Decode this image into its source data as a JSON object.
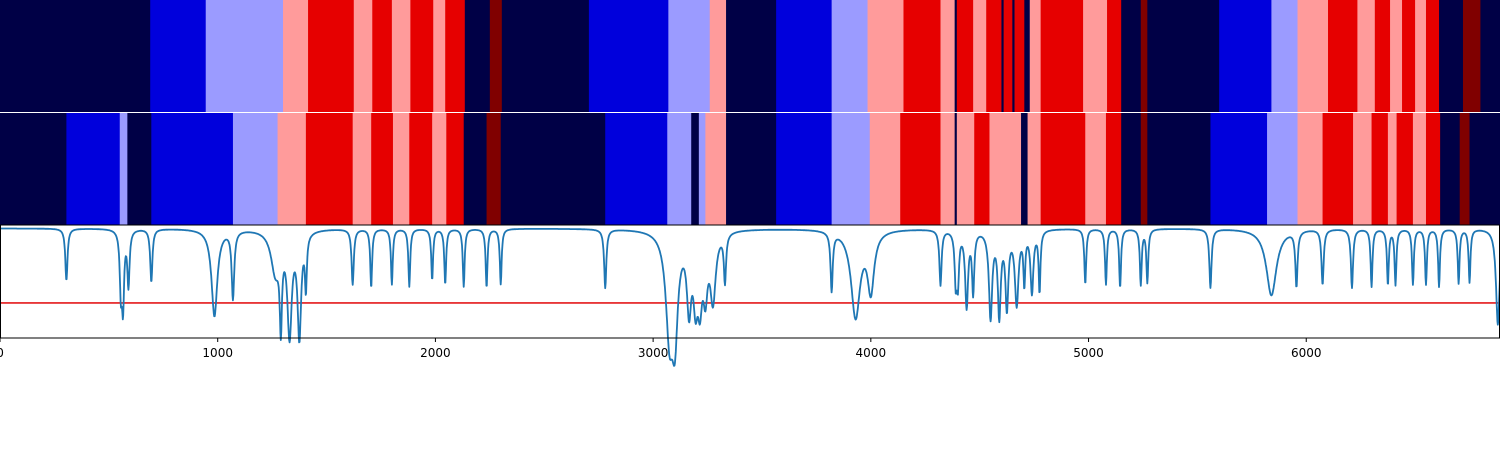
{
  "chart_data": {
    "type": "heatmap",
    "x_axis": {
      "range": [
        0,
        6890
      ],
      "ticks": [
        0,
        1000,
        2000,
        3000,
        4000,
        5000,
        6000
      ],
      "tick_labels": [
        "0",
        "1000",
        "2000",
        "3000",
        "4000",
        "5000",
        "6000"
      ]
    },
    "colormap": "seismic",
    "palette": {
      "navy": "#000046",
      "blue": "#0000dc",
      "light_blue": "#9b9bff",
      "pink": "#ff9b9b",
      "red": "#e60000",
      "dark_red": "#800000",
      "line": "#1f77b4",
      "threshold": "#e41a1c"
    },
    "tracks": [
      {
        "segments": [
          [
            0,
            690,
            "navy"
          ],
          [
            690,
            945,
            "blue"
          ],
          [
            945,
            1300,
            "light_blue"
          ],
          [
            1300,
            1415,
            "pink"
          ],
          [
            1415,
            1625,
            "red"
          ],
          [
            1625,
            1710,
            "pink"
          ],
          [
            1710,
            1800,
            "red"
          ],
          [
            1800,
            1885,
            "pink"
          ],
          [
            1885,
            1990,
            "red"
          ],
          [
            1990,
            2045,
            "pink"
          ],
          [
            2045,
            2135,
            "red"
          ],
          [
            2135,
            2250,
            "navy"
          ],
          [
            2250,
            2305,
            "dark_red"
          ],
          [
            2305,
            2705,
            "navy"
          ],
          [
            2705,
            3070,
            "blue"
          ],
          [
            3070,
            3260,
            "light_blue"
          ],
          [
            3260,
            3335,
            "pink"
          ],
          [
            3335,
            3565,
            "navy"
          ],
          [
            3565,
            3820,
            "blue"
          ],
          [
            3820,
            3985,
            "light_blue"
          ],
          [
            3985,
            4150,
            "pink"
          ],
          [
            4150,
            4320,
            "red"
          ],
          [
            4320,
            4385,
            "pink"
          ],
          [
            4385,
            4395,
            "navy"
          ],
          [
            4395,
            4470,
            "red"
          ],
          [
            4470,
            4530,
            "pink"
          ],
          [
            4530,
            4600,
            "red"
          ],
          [
            4600,
            4610,
            "navy"
          ],
          [
            4610,
            4650,
            "red"
          ],
          [
            4650,
            4660,
            "navy"
          ],
          [
            4660,
            4705,
            "red"
          ],
          [
            4705,
            4730,
            "navy"
          ],
          [
            4730,
            4780,
            "pink"
          ],
          [
            4780,
            4975,
            "red"
          ],
          [
            4975,
            5085,
            "pink"
          ],
          [
            5085,
            5150,
            "red"
          ],
          [
            5150,
            5240,
            "navy"
          ],
          [
            5240,
            5270,
            "dark_red"
          ],
          [
            5270,
            5600,
            "navy"
          ],
          [
            5600,
            5840,
            "blue"
          ],
          [
            5840,
            5960,
            "light_blue"
          ],
          [
            5960,
            6100,
            "pink"
          ],
          [
            6100,
            6235,
            "red"
          ],
          [
            6235,
            6315,
            "pink"
          ],
          [
            6315,
            6385,
            "red"
          ],
          [
            6385,
            6440,
            "pink"
          ],
          [
            6440,
            6500,
            "red"
          ],
          [
            6500,
            6550,
            "pink"
          ],
          [
            6550,
            6610,
            "red"
          ],
          [
            6610,
            6720,
            "navy"
          ],
          [
            6720,
            6800,
            "dark_red"
          ],
          [
            6800,
            6890,
            "navy"
          ]
        ]
      },
      {
        "segments": [
          [
            0,
            305,
            "navy"
          ],
          [
            305,
            550,
            "blue"
          ],
          [
            550,
            585,
            "light_blue"
          ],
          [
            585,
            695,
            "navy"
          ],
          [
            695,
            1070,
            "blue"
          ],
          [
            1070,
            1275,
            "light_blue"
          ],
          [
            1275,
            1405,
            "pink"
          ],
          [
            1405,
            1620,
            "red"
          ],
          [
            1620,
            1705,
            "pink"
          ],
          [
            1705,
            1805,
            "red"
          ],
          [
            1805,
            1880,
            "pink"
          ],
          [
            1880,
            1985,
            "red"
          ],
          [
            1985,
            2050,
            "pink"
          ],
          [
            2050,
            2130,
            "red"
          ],
          [
            2130,
            2235,
            "navy"
          ],
          [
            2235,
            2300,
            "dark_red"
          ],
          [
            2300,
            2780,
            "navy"
          ],
          [
            2780,
            3065,
            "blue"
          ],
          [
            3065,
            3175,
            "light_blue"
          ],
          [
            3175,
            3210,
            "navy"
          ],
          [
            3210,
            3240,
            "light_blue"
          ],
          [
            3240,
            3335,
            "pink"
          ],
          [
            3335,
            3565,
            "navy"
          ],
          [
            3565,
            3820,
            "blue"
          ],
          [
            3820,
            3995,
            "light_blue"
          ],
          [
            3995,
            4135,
            "pink"
          ],
          [
            4135,
            4320,
            "red"
          ],
          [
            4320,
            4385,
            "pink"
          ],
          [
            4385,
            4395,
            "navy"
          ],
          [
            4395,
            4475,
            "pink"
          ],
          [
            4475,
            4545,
            "red"
          ],
          [
            4545,
            4690,
            "pink"
          ],
          [
            4690,
            4720,
            "navy"
          ],
          [
            4720,
            4780,
            "pink"
          ],
          [
            4780,
            4985,
            "red"
          ],
          [
            4985,
            5080,
            "pink"
          ],
          [
            5080,
            5150,
            "red"
          ],
          [
            5150,
            5240,
            "navy"
          ],
          [
            5240,
            5270,
            "dark_red"
          ],
          [
            5270,
            5560,
            "navy"
          ],
          [
            5560,
            5820,
            "blue"
          ],
          [
            5820,
            5960,
            "light_blue"
          ],
          [
            5960,
            6075,
            "pink"
          ],
          [
            6075,
            6215,
            "red"
          ],
          [
            6215,
            6300,
            "pink"
          ],
          [
            6300,
            6375,
            "red"
          ],
          [
            6375,
            6415,
            "pink"
          ],
          [
            6415,
            6490,
            "red"
          ],
          [
            6490,
            6550,
            "pink"
          ],
          [
            6550,
            6615,
            "red"
          ],
          [
            6615,
            6705,
            "navy"
          ],
          [
            6705,
            6750,
            "dark_red"
          ],
          [
            6750,
            6890,
            "navy"
          ]
        ]
      }
    ],
    "line_series": {
      "ylim": [
        0,
        1
      ],
      "baseline": 0.97,
      "threshold": 0.31,
      "dips": [
        [
          305,
          0.51,
          6
        ],
        [
          555,
          0.47,
          6
        ],
        [
          565,
          0.33,
          6
        ],
        [
          590,
          0.48,
          6
        ],
        [
          695,
          0.5,
          6
        ],
        [
          985,
          0.2,
          16
        ],
        [
          1070,
          0.37,
          7
        ],
        [
          1265,
          0.6,
          24
        ],
        [
          1290,
          0.25,
          6
        ],
        [
          1330,
          0.07,
          12
        ],
        [
          1375,
          0.05,
          10
        ],
        [
          1405,
          0.5,
          5
        ],
        [
          1620,
          0.48,
          6
        ],
        [
          1705,
          0.45,
          5
        ],
        [
          1800,
          0.48,
          5
        ],
        [
          1880,
          0.46,
          5
        ],
        [
          1985,
          0.52,
          5
        ],
        [
          2045,
          0.48,
          5
        ],
        [
          2130,
          0.46,
          5
        ],
        [
          2235,
          0.45,
          5
        ],
        [
          2300,
          0.48,
          5
        ],
        [
          2780,
          0.45,
          6
        ],
        [
          3075,
          0.1,
          20
        ],
        [
          3100,
          0.16,
          16
        ],
        [
          3165,
          0.35,
          12
        ],
        [
          3195,
          0.45,
          12
        ],
        [
          3215,
          0.45,
          12
        ],
        [
          3240,
          0.5,
          12
        ],
        [
          3275,
          0.38,
          15
        ],
        [
          3330,
          0.54,
          6
        ],
        [
          3820,
          0.45,
          6
        ],
        [
          3930,
          0.2,
          25
        ],
        [
          4000,
          0.45,
          18
        ],
        [
          4320,
          0.48,
          6
        ],
        [
          4390,
          0.54,
          6
        ],
        [
          4400,
          0.54,
          6
        ],
        [
          4440,
          0.3,
          8
        ],
        [
          4470,
          0.43,
          6
        ],
        [
          4550,
          0.2,
          9
        ],
        [
          4590,
          0.23,
          8
        ],
        [
          4625,
          0.3,
          8
        ],
        [
          4670,
          0.32,
          10
        ],
        [
          4705,
          0.52,
          5
        ],
        [
          4740,
          0.42,
          8
        ],
        [
          4775,
          0.43,
          5
        ],
        [
          4985,
          0.48,
          5
        ],
        [
          5080,
          0.48,
          5
        ],
        [
          5145,
          0.45,
          5
        ],
        [
          5240,
          0.48,
          5
        ],
        [
          5270,
          0.5,
          5
        ],
        [
          5560,
          0.45,
          6
        ],
        [
          5840,
          0.38,
          28
        ],
        [
          5955,
          0.48,
          6
        ],
        [
          6075,
          0.48,
          6
        ],
        [
          6210,
          0.45,
          6
        ],
        [
          6300,
          0.46,
          5
        ],
        [
          6375,
          0.48,
          5
        ],
        [
          6410,
          0.48,
          5
        ],
        [
          6490,
          0.48,
          5
        ],
        [
          6550,
          0.48,
          5
        ],
        [
          6610,
          0.46,
          5
        ],
        [
          6700,
          0.49,
          5
        ],
        [
          6750,
          0.5,
          5
        ],
        [
          6880,
          0.12,
          10
        ]
      ]
    }
  }
}
